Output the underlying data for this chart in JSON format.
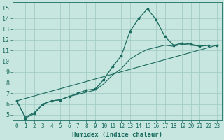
{
  "xlabel": "Humidex (Indice chaleur)",
  "ylabel": "",
  "xlim": [
    -0.5,
    23.5
  ],
  "ylim": [
    4.5,
    15.5
  ],
  "xticks": [
    0,
    1,
    2,
    3,
    4,
    5,
    6,
    7,
    8,
    9,
    10,
    11,
    12,
    13,
    14,
    15,
    16,
    17,
    18,
    19,
    20,
    21,
    22,
    23
  ],
  "yticks": [
    5,
    6,
    7,
    8,
    9,
    10,
    11,
    12,
    13,
    14,
    15
  ],
  "background_color": "#c8e6e0",
  "grid_color": "#9dc8c0",
  "line_color": "#1a6b60",
  "line1_x": [
    0,
    1,
    2,
    3,
    4,
    5,
    6,
    7,
    8,
    9,
    10,
    11,
    12,
    13,
    14,
    15,
    16,
    17,
    18,
    19,
    20,
    21,
    22,
    23
  ],
  "line1_y": [
    6.3,
    4.7,
    5.1,
    6.0,
    6.3,
    6.4,
    6.7,
    7.0,
    7.3,
    7.4,
    8.3,
    9.5,
    10.5,
    12.8,
    14.0,
    14.9,
    13.9,
    12.3,
    11.5,
    11.7,
    11.6,
    11.4,
    11.5,
    11.5
  ],
  "line2_x": [
    0,
    1,
    2,
    3,
    4,
    5,
    6,
    7,
    8,
    9,
    10,
    11,
    12,
    13,
    14,
    15,
    16,
    17,
    18,
    19,
    20,
    21,
    22,
    23
  ],
  "line2_y": [
    6.3,
    4.8,
    5.2,
    6.0,
    6.3,
    6.4,
    6.7,
    6.9,
    7.1,
    7.3,
    7.9,
    8.7,
    9.3,
    10.2,
    10.7,
    11.1,
    11.3,
    11.5,
    11.4,
    11.6,
    11.5,
    11.4,
    11.5,
    11.5
  ],
  "line3_x": [
    0,
    23
  ],
  "line3_y": [
    6.3,
    11.5
  ],
  "tick_fontsize": 5.5,
  "xlabel_fontsize": 6.5
}
